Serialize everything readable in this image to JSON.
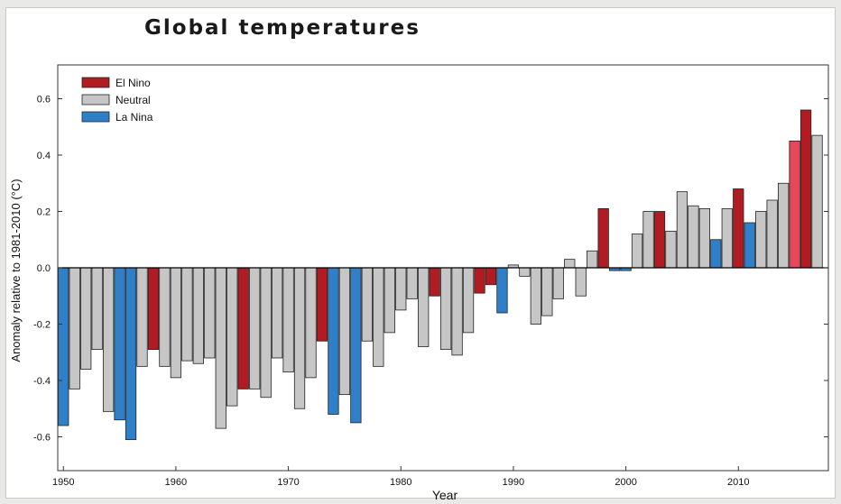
{
  "chart_data": {
    "type": "bar",
    "title": "Global temperatures",
    "xlabel": "Year",
    "ylabel": "Anomaly relative to 1981-2010 (°C)",
    "xlim": [
      1949.5,
      2018
    ],
    "ylim": [
      -0.72,
      0.72
    ],
    "xticks": [
      1950,
      1960,
      1970,
      1980,
      1990,
      2000,
      2010
    ],
    "yticks": [
      -0.6,
      -0.4,
      -0.2,
      0.0,
      0.2,
      0.4,
      0.6
    ],
    "ytick_labels": [
      "-0.6",
      "-0.4",
      "-0.2",
      "0.0",
      "0.2",
      "0.4",
      "0.6"
    ],
    "legend": {
      "placement": "top-left",
      "entries": [
        {
          "name": "El Nino",
          "color": "#b01c22"
        },
        {
          "name": "Neutral",
          "color": "#c6c6c6"
        },
        {
          "name": "La Nina",
          "color": "#2f80c8"
        }
      ]
    },
    "colors": {
      "El Nino": "#b01c22",
      "El Nino highlight": "#e8475a",
      "Neutral": "#c6c6c6",
      "La Nina": "#2f80c8"
    },
    "bars": [
      {
        "year": 1950,
        "value": -0.56,
        "phase": "La Nina"
      },
      {
        "year": 1951,
        "value": -0.43,
        "phase": "Neutral"
      },
      {
        "year": 1952,
        "value": -0.36,
        "phase": "Neutral"
      },
      {
        "year": 1953,
        "value": -0.29,
        "phase": "Neutral"
      },
      {
        "year": 1954,
        "value": -0.51,
        "phase": "Neutral"
      },
      {
        "year": 1955,
        "value": -0.54,
        "phase": "La Nina"
      },
      {
        "year": 1956,
        "value": -0.61,
        "phase": "La Nina"
      },
      {
        "year": 1957,
        "value": -0.35,
        "phase": "Neutral"
      },
      {
        "year": 1958,
        "value": -0.29,
        "phase": "El Nino"
      },
      {
        "year": 1959,
        "value": -0.35,
        "phase": "Neutral"
      },
      {
        "year": 1960,
        "value": -0.39,
        "phase": "Neutral"
      },
      {
        "year": 1961,
        "value": -0.33,
        "phase": "Neutral"
      },
      {
        "year": 1962,
        "value": -0.34,
        "phase": "Neutral"
      },
      {
        "year": 1963,
        "value": -0.32,
        "phase": "Neutral"
      },
      {
        "year": 1964,
        "value": -0.57,
        "phase": "Neutral"
      },
      {
        "year": 1965,
        "value": -0.49,
        "phase": "Neutral"
      },
      {
        "year": 1966,
        "value": -0.43,
        "phase": "El Nino"
      },
      {
        "year": 1967,
        "value": -0.43,
        "phase": "Neutral"
      },
      {
        "year": 1968,
        "value": -0.46,
        "phase": "Neutral"
      },
      {
        "year": 1969,
        "value": -0.32,
        "phase": "Neutral"
      },
      {
        "year": 1970,
        "value": -0.37,
        "phase": "Neutral"
      },
      {
        "year": 1971,
        "value": -0.5,
        "phase": "Neutral"
      },
      {
        "year": 1972,
        "value": -0.39,
        "phase": "Neutral"
      },
      {
        "year": 1973,
        "value": -0.26,
        "phase": "El Nino"
      },
      {
        "year": 1974,
        "value": -0.52,
        "phase": "La Nina"
      },
      {
        "year": 1975,
        "value": -0.45,
        "phase": "Neutral"
      },
      {
        "year": 1976,
        "value": -0.55,
        "phase": "La Nina"
      },
      {
        "year": 1977,
        "value": -0.26,
        "phase": "Neutral"
      },
      {
        "year": 1978,
        "value": -0.35,
        "phase": "Neutral"
      },
      {
        "year": 1979,
        "value": -0.23,
        "phase": "Neutral"
      },
      {
        "year": 1980,
        "value": -0.15,
        "phase": "Neutral"
      },
      {
        "year": 1981,
        "value": -0.11,
        "phase": "Neutral"
      },
      {
        "year": 1982,
        "value": -0.28,
        "phase": "Neutral"
      },
      {
        "year": 1983,
        "value": -0.1,
        "phase": "El Nino"
      },
      {
        "year": 1984,
        "value": -0.29,
        "phase": "Neutral"
      },
      {
        "year": 1985,
        "value": -0.31,
        "phase": "Neutral"
      },
      {
        "year": 1986,
        "value": -0.23,
        "phase": "Neutral"
      },
      {
        "year": 1987,
        "value": -0.09,
        "phase": "El Nino"
      },
      {
        "year": 1988,
        "value": -0.06,
        "phase": "El Nino"
      },
      {
        "year": 1989,
        "value": -0.16,
        "phase": "La Nina"
      },
      {
        "year": 1990,
        "value": 0.01,
        "phase": "Neutral"
      },
      {
        "year": 1991,
        "value": -0.03,
        "phase": "Neutral"
      },
      {
        "year": 1992,
        "value": -0.2,
        "phase": "Neutral"
      },
      {
        "year": 1993,
        "value": -0.17,
        "phase": "Neutral"
      },
      {
        "year": 1994,
        "value": -0.11,
        "phase": "Neutral"
      },
      {
        "year": 1995,
        "value": 0.03,
        "phase": "Neutral"
      },
      {
        "year": 1996,
        "value": -0.1,
        "phase": "Neutral"
      },
      {
        "year": 1997,
        "value": 0.06,
        "phase": "Neutral"
      },
      {
        "year": 1998,
        "value": 0.21,
        "phase": "El Nino"
      },
      {
        "year": 1999,
        "value": -0.01,
        "phase": "La Nina"
      },
      {
        "year": 2000,
        "value": -0.01,
        "phase": "La Nina"
      },
      {
        "year": 2001,
        "value": 0.12,
        "phase": "Neutral"
      },
      {
        "year": 2002,
        "value": 0.2,
        "phase": "Neutral"
      },
      {
        "year": 2003,
        "value": 0.2,
        "phase": "El Nino"
      },
      {
        "year": 2004,
        "value": 0.13,
        "phase": "Neutral"
      },
      {
        "year": 2005,
        "value": 0.27,
        "phase": "Neutral"
      },
      {
        "year": 2006,
        "value": 0.22,
        "phase": "Neutral"
      },
      {
        "year": 2007,
        "value": 0.21,
        "phase": "Neutral"
      },
      {
        "year": 2008,
        "value": 0.1,
        "phase": "La Nina"
      },
      {
        "year": 2009,
        "value": 0.21,
        "phase": "Neutral"
      },
      {
        "year": 2010,
        "value": 0.28,
        "phase": "El Nino"
      },
      {
        "year": 2011,
        "value": 0.16,
        "phase": "La Nina"
      },
      {
        "year": 2012,
        "value": 0.2,
        "phase": "Neutral"
      },
      {
        "year": 2013,
        "value": 0.24,
        "phase": "Neutral"
      },
      {
        "year": 2014,
        "value": 0.3,
        "phase": "Neutral"
      },
      {
        "year": 2015,
        "value": 0.45,
        "phase": "El Nino",
        "highlight": true
      },
      {
        "year": 2016,
        "value": 0.56,
        "phase": "El Nino"
      },
      {
        "year": 2017,
        "value": 0.47,
        "phase": "Neutral"
      }
    ]
  }
}
